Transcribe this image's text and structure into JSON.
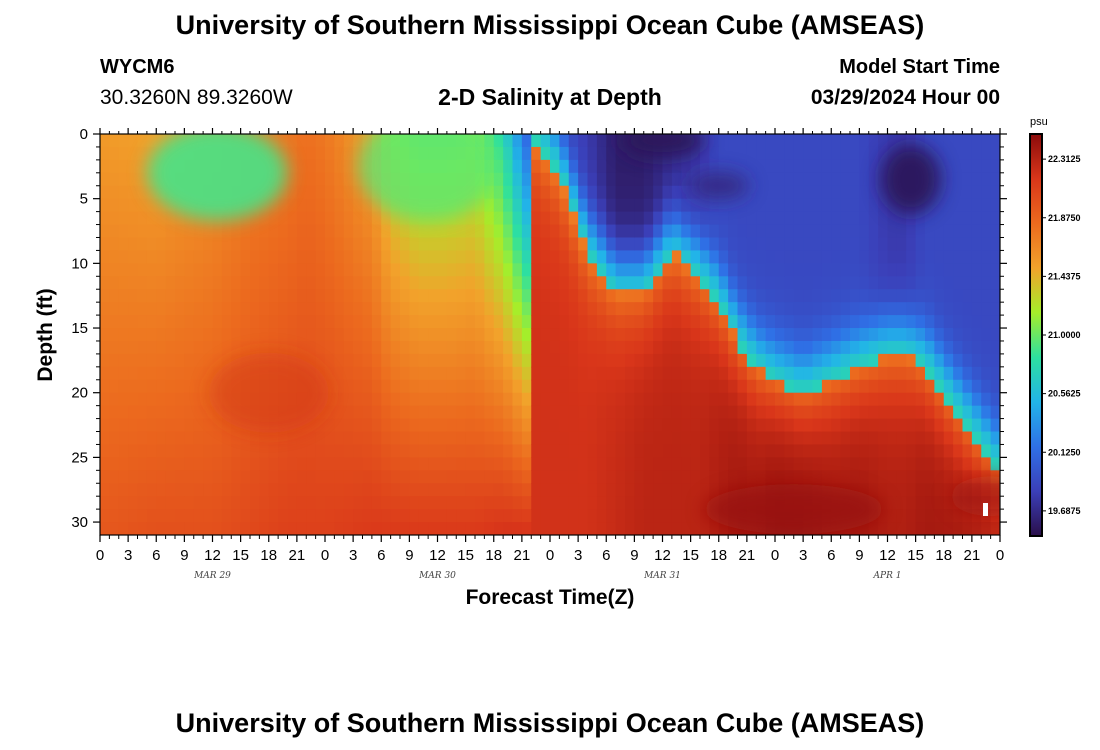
{
  "page": {
    "title": "University of Southern Mississippi Ocean Cube (AMSEAS)",
    "station_id": "WYCM6",
    "coordinates": "30.3260N  89.3260W",
    "chart_title": "2-D Salinity at Depth",
    "model_start_label": "Model Start Time",
    "model_start_value": "03/29/2024 Hour 00",
    "footer_title": "University of Southern Mississippi Ocean Cube (AMSEAS)"
  },
  "chart_data": {
    "type": "heatmap",
    "title": "2-D Salinity at Depth",
    "xlabel": "Forecast Time(Z)",
    "ylabel": "Depth (ft)",
    "xlim_hours": [
      0,
      96
    ],
    "ylim": [
      0,
      31
    ],
    "x_tick_labels": [
      "0",
      "3",
      "6",
      "9",
      "12",
      "15",
      "18",
      "21",
      "0",
      "3",
      "6",
      "9",
      "12",
      "15",
      "18",
      "21",
      "0",
      "3",
      "6",
      "9",
      "12",
      "15",
      "18",
      "21",
      "0",
      "3",
      "6",
      "9",
      "12",
      "15",
      "18",
      "21",
      "0"
    ],
    "y_tick_labels": [
      "0",
      "5",
      "10",
      "15",
      "20",
      "25",
      "30"
    ],
    "y_tick_values": [
      0,
      5,
      10,
      15,
      20,
      25,
      30
    ],
    "date_labels": [
      {
        "text": "MAR 29",
        "hour": 12
      },
      {
        "text": "MAR 30",
        "hour": 36
      },
      {
        "text": "MAR 31",
        "hour": 60
      },
      {
        "text": "APR 1",
        "hour": 84
      }
    ],
    "colorbar": {
      "unit": "psu",
      "min": 19.5,
      "max": 22.5,
      "tick_labels": [
        "22.3125",
        "21.8750",
        "21.4375",
        "21.0000",
        "20.5625",
        "20.1250",
        "19.6875"
      ],
      "tick_values": [
        22.3125,
        21.875,
        21.4375,
        21.0,
        20.5625,
        20.125,
        19.6875
      ],
      "colors": [
        "#2a0f4a",
        "#3b3fb8",
        "#2f70e6",
        "#22b4e8",
        "#2de0a0",
        "#a6ee2a",
        "#f2a22b",
        "#ec6a1e",
        "#d9361a",
        "#8b0b0b"
      ]
    },
    "salinity_profile": {
      "hours": [
        0,
        6,
        9,
        12,
        16,
        20,
        22,
        24,
        29,
        31,
        34,
        37,
        40,
        43,
        46,
        49,
        52,
        55,
        58,
        61,
        64,
        66,
        68,
        70,
        72,
        75,
        78,
        81,
        84,
        86,
        88,
        90,
        92,
        94,
        96
      ],
      "halocline_depth_ft": [
        0,
        0,
        0,
        0,
        0,
        0,
        0,
        0,
        0,
        0,
        0,
        0,
        0,
        0,
        0,
        3,
        9,
        12,
        12,
        9,
        11,
        13,
        16,
        18,
        19,
        20,
        19,
        18,
        17,
        17,
        18,
        20,
        22,
        24,
        26
      ],
      "surface_salinity_psu": [
        21.55,
        21.5,
        21.55,
        21.6,
        21.7,
        21.75,
        21.8,
        21.75,
        21.5,
        21.2,
        21.05,
        21.05,
        21.1,
        20.75,
        20.0,
        19.9,
        19.8,
        19.6,
        19.6,
        19.7,
        19.8,
        19.9,
        19.9,
        19.9,
        19.9,
        19.9,
        19.9,
        19.9,
        19.8,
        19.8,
        19.9,
        19.9,
        19.9,
        19.9,
        19.9
      ],
      "bottom_salinity_psu": [
        21.95,
        22.0,
        22.0,
        22.0,
        22.05,
        22.1,
        22.1,
        22.1,
        22.15,
        22.15,
        22.15,
        22.15,
        22.15,
        22.2,
        22.2,
        22.2,
        22.2,
        22.25,
        22.3,
        22.3,
        22.3,
        22.35,
        22.4,
        22.4,
        22.45,
        22.45,
        22.4,
        22.4,
        22.35,
        22.35,
        22.4,
        22.4,
        22.4,
        22.4,
        22.4
      ]
    }
  }
}
